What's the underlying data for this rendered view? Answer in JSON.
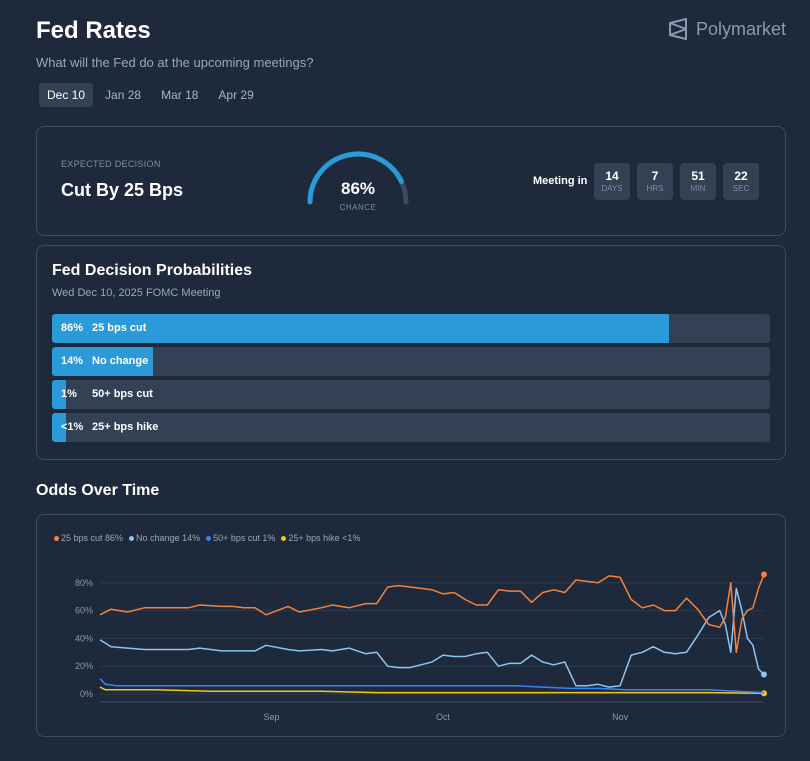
{
  "header": {
    "title": "Fed Rates",
    "subtitle": "What will the Fed do at the upcoming meetings?",
    "brand": "Polymarket"
  },
  "tabs": [
    {
      "label": "Dec 10",
      "active": true
    },
    {
      "label": "Jan 28",
      "active": false
    },
    {
      "label": "Mar 18",
      "active": false
    },
    {
      "label": "Apr 29",
      "active": false
    }
  ],
  "expected": {
    "label": "EXPECTED DECISION",
    "value": "Cut By 25 Bps",
    "chance_text": "86%",
    "chance_label": "CHANCE",
    "chance": 0.86
  },
  "meeting": {
    "label": "Meeting in",
    "countdown": [
      {
        "value": "14",
        "unit": "DAYS"
      },
      {
        "value": "7",
        "unit": "HRS"
      },
      {
        "value": "51",
        "unit": "MIN"
      },
      {
        "value": "22",
        "unit": "SEC"
      }
    ]
  },
  "probabilities": {
    "title": "Fed Decision Probabilities",
    "subtitle": "Wed Dec 10, 2025 FOMC Meeting",
    "rows": [
      {
        "pct": "86%",
        "label": "25 bps cut",
        "value": 0.86
      },
      {
        "pct": "14%",
        "label": "No change",
        "value": 0.14
      },
      {
        "pct": "1%",
        "label": "50+ bps cut",
        "value": 0.01
      },
      {
        "pct": "<1%",
        "label": "25+ bps hike",
        "value": 0.005
      }
    ]
  },
  "odds": {
    "title": "Odds Over Time"
  },
  "colors": {
    "cut25": "#f5823c",
    "nochange": "#8cc4f5",
    "cut50": "#3b82f6",
    "hike": "#f5c518",
    "accent": "#2a9ad8"
  },
  "chart_data": {
    "type": "line",
    "title": "",
    "xlabel": "",
    "ylabel": "",
    "ylim": [
      0,
      90
    ],
    "xlim": [
      0,
      120
    ],
    "x_ticks": [
      {
        "x": 31,
        "label": "Sep"
      },
      {
        "x": 62,
        "label": "Oct"
      },
      {
        "x": 94,
        "label": "Nov"
      }
    ],
    "y_ticks": [
      {
        "y": 0,
        "label": "0%"
      },
      {
        "y": 20,
        "label": "20%"
      },
      {
        "y": 40,
        "label": "40%"
      },
      {
        "y": 60,
        "label": "60%"
      },
      {
        "y": 80,
        "label": "80%"
      }
    ],
    "series": [
      {
        "name": "25 bps cut",
        "legend": "25 bps cut 86%",
        "color": "#f5823c",
        "x": [
          0,
          2,
          5,
          8,
          12,
          16,
          18,
          22,
          24,
          26,
          28,
          30,
          34,
          36,
          40,
          42,
          45,
          48,
          50,
          52,
          54,
          56,
          58,
          60,
          62,
          64,
          66,
          68,
          70,
          72,
          74,
          76,
          78,
          80,
          82,
          84,
          86,
          88,
          90,
          92,
          94,
          96,
          98,
          100,
          102,
          104,
          106,
          108,
          110,
          112,
          113,
          114,
          115,
          116,
          117,
          118,
          119,
          120
        ],
        "y": [
          57,
          61,
          59,
          62,
          62,
          62,
          64,
          63,
          63,
          62,
          62,
          57,
          63,
          59,
          62,
          64,
          62,
          65,
          65,
          77,
          78,
          77,
          76,
          75,
          72,
          73,
          68,
          64,
          64,
          75,
          74,
          74,
          66,
          73,
          75,
          73,
          82,
          81,
          80,
          85,
          84,
          68,
          62,
          64,
          60,
          60,
          69,
          61,
          50,
          48,
          55,
          80,
          30,
          54,
          60,
          62,
          76,
          86
        ]
      },
      {
        "name": "No change",
        "legend": "No change 14%",
        "color": "#8cc4f5",
        "x": [
          0,
          2,
          5,
          8,
          12,
          16,
          18,
          22,
          24,
          26,
          28,
          30,
          34,
          36,
          40,
          42,
          45,
          48,
          50,
          52,
          54,
          56,
          58,
          60,
          62,
          64,
          66,
          68,
          70,
          72,
          74,
          76,
          78,
          80,
          82,
          84,
          86,
          88,
          90,
          92,
          94,
          96,
          98,
          100,
          102,
          104,
          106,
          108,
          110,
          112,
          113,
          114,
          115,
          116,
          117,
          118,
          119,
          120
        ],
        "y": [
          39,
          34,
          33,
          32,
          32,
          32,
          33,
          31,
          31,
          31,
          31,
          35,
          32,
          31,
          32,
          31,
          33,
          29,
          30,
          20,
          19,
          19,
          21,
          23,
          28,
          27,
          27,
          29,
          30,
          20,
          22,
          22,
          28,
          23,
          21,
          23,
          6,
          6,
          7,
          5,
          6,
          28,
          30,
          34,
          30,
          29,
          30,
          42,
          55,
          60,
          50,
          30,
          76,
          60,
          40,
          35,
          18,
          14
        ]
      },
      {
        "name": "50+ bps cut",
        "legend": "50+ bps cut 1%",
        "color": "#3b82f6",
        "x": [
          0,
          1,
          3,
          10,
          20,
          30,
          40,
          50,
          55,
          60,
          65,
          70,
          75,
          80,
          85,
          90,
          95,
          100,
          105,
          110,
          115,
          120
        ],
        "y": [
          11,
          7,
          6,
          6,
          6,
          6,
          6,
          6,
          6,
          6,
          6,
          6,
          6,
          5,
          4,
          4,
          3,
          3,
          3,
          3,
          2,
          1
        ]
      },
      {
        "name": "25+ bps hike",
        "legend": "25+ bps hike <1%",
        "color": "#f5c518",
        "x": [
          0,
          1,
          3,
          10,
          20,
          30,
          40,
          50,
          60,
          70,
          80,
          90,
          100,
          110,
          120
        ],
        "y": [
          5,
          3,
          3,
          3,
          2,
          2,
          2,
          1,
          1,
          1,
          1,
          1,
          1,
          1,
          0.5
        ]
      }
    ]
  }
}
